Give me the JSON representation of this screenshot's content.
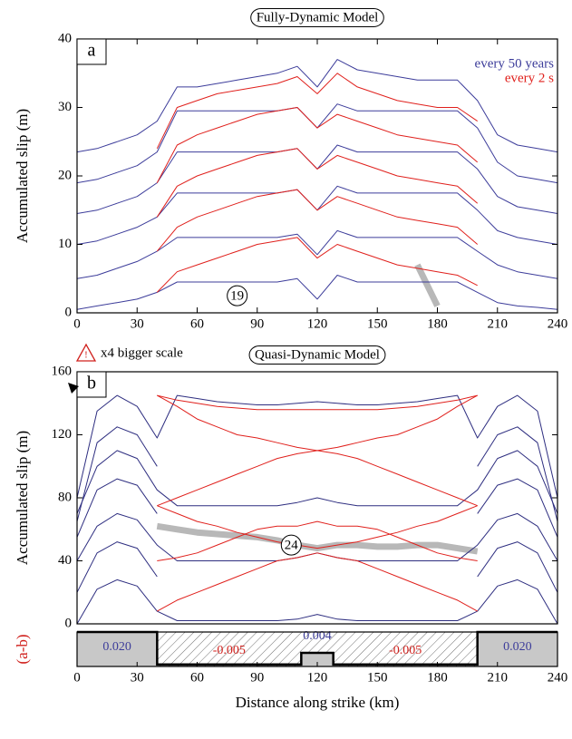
{
  "chart_data": [
    {
      "type": "line",
      "title": "Fully-Dynamic Model",
      "panel_label": "a",
      "y_label": "Accumulated slip (m)",
      "x": [
        0,
        10,
        20,
        30,
        40,
        50,
        60,
        70,
        80,
        90,
        100,
        110,
        120,
        130,
        140,
        150,
        160,
        170,
        180,
        190,
        200,
        210,
        220,
        230,
        240
      ],
      "xlim": [
        0,
        240
      ],
      "xticks": [
        0,
        30,
        60,
        90,
        120,
        150,
        180,
        210,
        240
      ],
      "ylim": [
        0,
        40
      ],
      "yticks": [
        0,
        10,
        20,
        30,
        40
      ],
      "legend": "top right",
      "series": [
        {
          "name": "every 50 years",
          "color": "#3c3c9a",
          "values": [
            [
              0.5,
              1,
              1.5,
              2,
              3,
              4.5,
              4.5,
              4.5,
              4.5,
              4.5,
              4.5,
              5,
              2,
              5.5,
              4.5,
              4.5,
              4.5,
              4.5,
              4.5,
              4.5,
              3,
              1.5,
              1,
              0.8,
              0.5
            ],
            [
              5,
              5.5,
              6.5,
              7.5,
              9,
              11,
              11,
              11,
              11,
              11,
              11,
              11.5,
              8.5,
              12,
              11,
              11,
              11,
              11,
              11,
              11,
              9,
              7,
              6,
              5.5,
              5
            ],
            [
              10,
              10.5,
              11.5,
              12.5,
              14,
              17.5,
              17.5,
              17.5,
              17.5,
              17.5,
              17.5,
              18,
              15,
              18.5,
              17.5,
              17.5,
              17.5,
              17.5,
              17.5,
              17.5,
              15,
              12,
              11,
              10.5,
              10
            ],
            [
              14.5,
              15,
              16,
              17,
              19,
              23.5,
              23.5,
              23.5,
              23.5,
              23.5,
              23.5,
              24,
              21,
              24.5,
              23.5,
              23.5,
              23.5,
              23.5,
              23.5,
              23.5,
              21,
              17,
              15.5,
              15,
              14.5
            ],
            [
              19,
              19.5,
              20.5,
              21.5,
              23.5,
              29.5,
              29.5,
              29.5,
              29.5,
              29.5,
              29.5,
              30,
              27,
              30.5,
              29.5,
              29.5,
              29.5,
              29.5,
              29.5,
              29.5,
              27,
              22,
              20,
              19.5,
              19
            ],
            [
              23.5,
              24,
              25,
              26,
              28,
              33,
              33,
              33.5,
              34,
              34.5,
              35,
              36,
              33,
              37,
              35.5,
              35,
              34.5,
              34,
              34,
              34,
              31,
              26,
              24.5,
              24,
              23.5
            ]
          ]
        },
        {
          "name": "every 2 s",
          "color": "#e0201c",
          "values": [
            [
              null,
              null,
              null,
              null,
              3,
              6,
              7,
              8,
              9,
              10,
              10.5,
              11,
              8,
              10,
              9,
              8,
              7,
              6.5,
              6,
              5.5,
              4,
              null,
              null,
              null,
              null
            ],
            [
              null,
              null,
              null,
              null,
              9,
              12.5,
              14,
              15,
              16,
              17,
              17.5,
              18,
              15,
              17,
              16,
              15,
              14,
              13.5,
              13,
              12.5,
              10,
              null,
              null,
              null,
              null
            ],
            [
              null,
              null,
              null,
              null,
              14,
              18.5,
              20,
              21,
              22,
              23,
              23.5,
              24,
              21,
              23,
              22,
              21,
              20,
              19.5,
              19,
              18.5,
              16,
              null,
              null,
              null,
              null
            ],
            [
              null,
              null,
              null,
              null,
              19,
              24.5,
              26,
              27,
              28,
              29,
              29.5,
              30,
              27,
              29,
              28,
              27,
              26,
              25.5,
              25,
              24.5,
              22,
              null,
              null,
              null,
              null
            ],
            [
              null,
              null,
              null,
              null,
              24,
              30,
              31,
              32,
              32.5,
              33,
              33.5,
              34.5,
              32,
              35,
              33,
              32,
              31,
              30.5,
              30,
              30,
              28,
              null,
              null,
              null,
              null
            ]
          ]
        }
      ],
      "highlight": {
        "color": "#b8b8b8",
        "values": [
          null,
          null,
          null,
          null,
          null,
          null,
          null,
          null,
          null,
          null,
          null,
          null,
          null,
          null,
          null,
          null,
          null,
          7,
          1,
          null,
          null,
          null,
          null,
          null,
          null
        ]
      },
      "annotations": [
        {
          "text": "19",
          "x": 80,
          "y": 2.5
        }
      ]
    },
    {
      "type": "line",
      "title": "Quasi-Dynamic Model",
      "panel_label": "b",
      "y_label": "Accumulated slip (m)",
      "warning_icon": "!",
      "warning": "x4 bigger scale",
      "x": [
        0,
        10,
        20,
        30,
        40,
        50,
        60,
        70,
        80,
        90,
        100,
        110,
        120,
        130,
        140,
        150,
        160,
        170,
        180,
        190,
        200,
        210,
        220,
        230,
        240
      ],
      "xlim": [
        0,
        240
      ],
      "ylim": [
        0,
        160
      ],
      "yticks": [
        0,
        40,
        80,
        120,
        160
      ],
      "series": [
        {
          "color": "#2e2e80",
          "values": [
            [
              0,
              22,
              28,
              24,
              8,
              2,
              2,
              2,
              2,
              2,
              2,
              3,
              6,
              3,
              2,
              2,
              2,
              2,
              2,
              2,
              8,
              24,
              28,
              22,
              0
            ],
            [
              20,
              45,
              52,
              48,
              30,
              null,
              null,
              null,
              null,
              null,
              null,
              null,
              null,
              null,
              null,
              null,
              null,
              null,
              null,
              null,
              30,
              48,
              52,
              45,
              20
            ],
            [
              40,
              62,
              70,
              66,
              50,
              40,
              40,
              40,
              40,
              40,
              40,
              42,
              45,
              42,
              40,
              40,
              40,
              40,
              40,
              40,
              50,
              66,
              70,
              62,
              40
            ],
            [
              55,
              85,
              92,
              88,
              70,
              null,
              null,
              null,
              null,
              null,
              null,
              null,
              null,
              null,
              null,
              null,
              null,
              null,
              null,
              null,
              70,
              88,
              92,
              85,
              55
            ],
            [
              70,
              100,
              110,
              105,
              85,
              75,
              75,
              75,
              75,
              75,
              75,
              77,
              80,
              77,
              75,
              75,
              75,
              75,
              75,
              75,
              85,
              105,
              110,
              100,
              70
            ],
            [
              65,
              115,
              125,
              120,
              100,
              null,
              null,
              null,
              null,
              null,
              null,
              null,
              null,
              null,
              null,
              null,
              null,
              null,
              null,
              null,
              100,
              120,
              125,
              115,
              65
            ],
            [
              80,
              135,
              145,
              138,
              118,
              145,
              143,
              141,
              140,
              139,
              139,
              140,
              141,
              140,
              139,
              139,
              140,
              141,
              143,
              145,
              118,
              138,
              145,
              135,
              80
            ]
          ]
        },
        {
          "color": "#e0201c",
          "values": [
            [
              null,
              null,
              null,
              null,
              8,
              15,
              20,
              25,
              30,
              35,
              40,
              42,
              45,
              42,
              40,
              35,
              30,
              25,
              20,
              15,
              8,
              null,
              null,
              null,
              null
            ],
            [
              null,
              null,
              null,
              null,
              40,
              42,
              45,
              50,
              55,
              60,
              62,
              62,
              65,
              62,
              62,
              60,
              55,
              50,
              45,
              42,
              40,
              null,
              null,
              null,
              null
            ],
            [
              null,
              null,
              null,
              null,
              75,
              80,
              85,
              90,
              95,
              100,
              105,
              108,
              110,
              108,
              105,
              100,
              95,
              90,
              85,
              80,
              75,
              null,
              null,
              null,
              null
            ],
            [
              null,
              null,
              null,
              null,
              145,
              138,
              130,
              125,
              120,
              118,
              115,
              112,
              110,
              112,
              115,
              118,
              120,
              125,
              130,
              138,
              145,
              null,
              null,
              null,
              null
            ],
            [
              null,
              null,
              null,
              null,
              75,
              70,
              65,
              62,
              58,
              55,
              52,
              50,
              48,
              50,
              52,
              55,
              58,
              62,
              65,
              70,
              75,
              null,
              null,
              null,
              null
            ],
            [
              null,
              null,
              null,
              null,
              145,
              142,
              140,
              138,
              137,
              136,
              136,
              136,
              136,
              136,
              136,
              136,
              137,
              138,
              140,
              142,
              145,
              null,
              null,
              null,
              null
            ]
          ]
        }
      ],
      "highlight": {
        "color": "#b8b8b8",
        "values": [
          null,
          null,
          null,
          null,
          62,
          60,
          58,
          57,
          56,
          55,
          53,
          50,
          48,
          50,
          50,
          49,
          49,
          50,
          50,
          48,
          46,
          null,
          null,
          null,
          null
        ]
      },
      "annotations": [
        {
          "text": "24",
          "x": 107,
          "y": 50
        }
      ]
    },
    {
      "type": "step",
      "y_label": "(a-b)",
      "x_label": "Distance along strike (km)",
      "x_edges": [
        0,
        40,
        112,
        128,
        200,
        240
      ],
      "values": [
        0.02,
        -0.005,
        0.004,
        -0.005,
        0.02
      ],
      "value_labels": [
        "0.020",
        "-0.005",
        "0.004",
        "-0.005",
        "0.020"
      ],
      "positive_color": "#3c3c9a",
      "negative_color": "#d0201c",
      "fill": "#c8c8c8",
      "xlim": [
        0,
        240
      ],
      "xticks": [
        0,
        30,
        60,
        90,
        120,
        150,
        180,
        210,
        240
      ],
      "ylim": [
        -0.0065,
        0.02
      ]
    }
  ]
}
